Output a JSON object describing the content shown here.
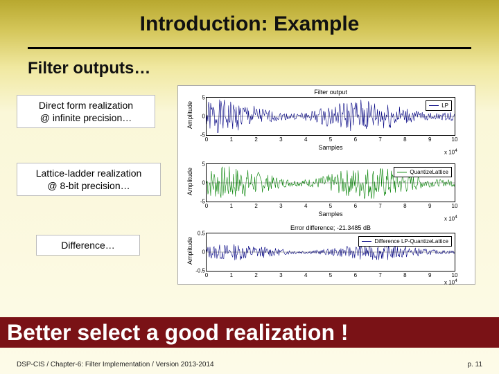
{
  "title": "Introduction: Example",
  "subtitle": "Filter outputs…",
  "labels": {
    "direct_form_l1": "Direct form realization",
    "direct_form_l2": "@ infinite precision…",
    "lattice_l1": "Lattice-ladder realization",
    "lattice_l2": "@ 8-bit precision…",
    "difference": "Difference…"
  },
  "charts": {
    "common": {
      "ylabel": "Amplitude",
      "xlabel": "Samples",
      "x_exponent": "x 10",
      "x_exponent_sup": "4",
      "xlim": [
        0,
        10
      ],
      "xtick_step": 1,
      "background_color": "#ffffff",
      "axis_color": "#000000",
      "tick_fontsize": 8,
      "label_fontsize": 9
    },
    "c1": {
      "title": "Filter output",
      "legend": "LP",
      "legend_color": "#000080",
      "line_color": "#000080",
      "ylim": [
        -5,
        5
      ],
      "yticks": [
        -5,
        0,
        5
      ],
      "amplitude": 4.5
    },
    "c2": {
      "title": "",
      "legend": "QuantizeLattice",
      "legend_color": "#008000",
      "line_color": "#008000",
      "ylim": [
        -5,
        5
      ],
      "yticks": [
        -5,
        0,
        5
      ],
      "amplitude": 4.5
    },
    "c3": {
      "title": "Error difference; -21.3485 dB",
      "legend": "Difference LP-QuantizeLattice",
      "legend_color": "#000080",
      "line_color": "#000080",
      "ylim": [
        -0.5,
        0.5
      ],
      "yticks": [
        -0.5,
        0,
        0.5
      ],
      "amplitude": 0.22
    }
  },
  "banner": "Better select a good realization !",
  "banner_bg": "#7a1216",
  "banner_text_color": "#ffffff",
  "footer_left": "DSP-CIS / Chapter-6: Filter Implementation / Version 2013-2014",
  "footer_right": "p. 11"
}
